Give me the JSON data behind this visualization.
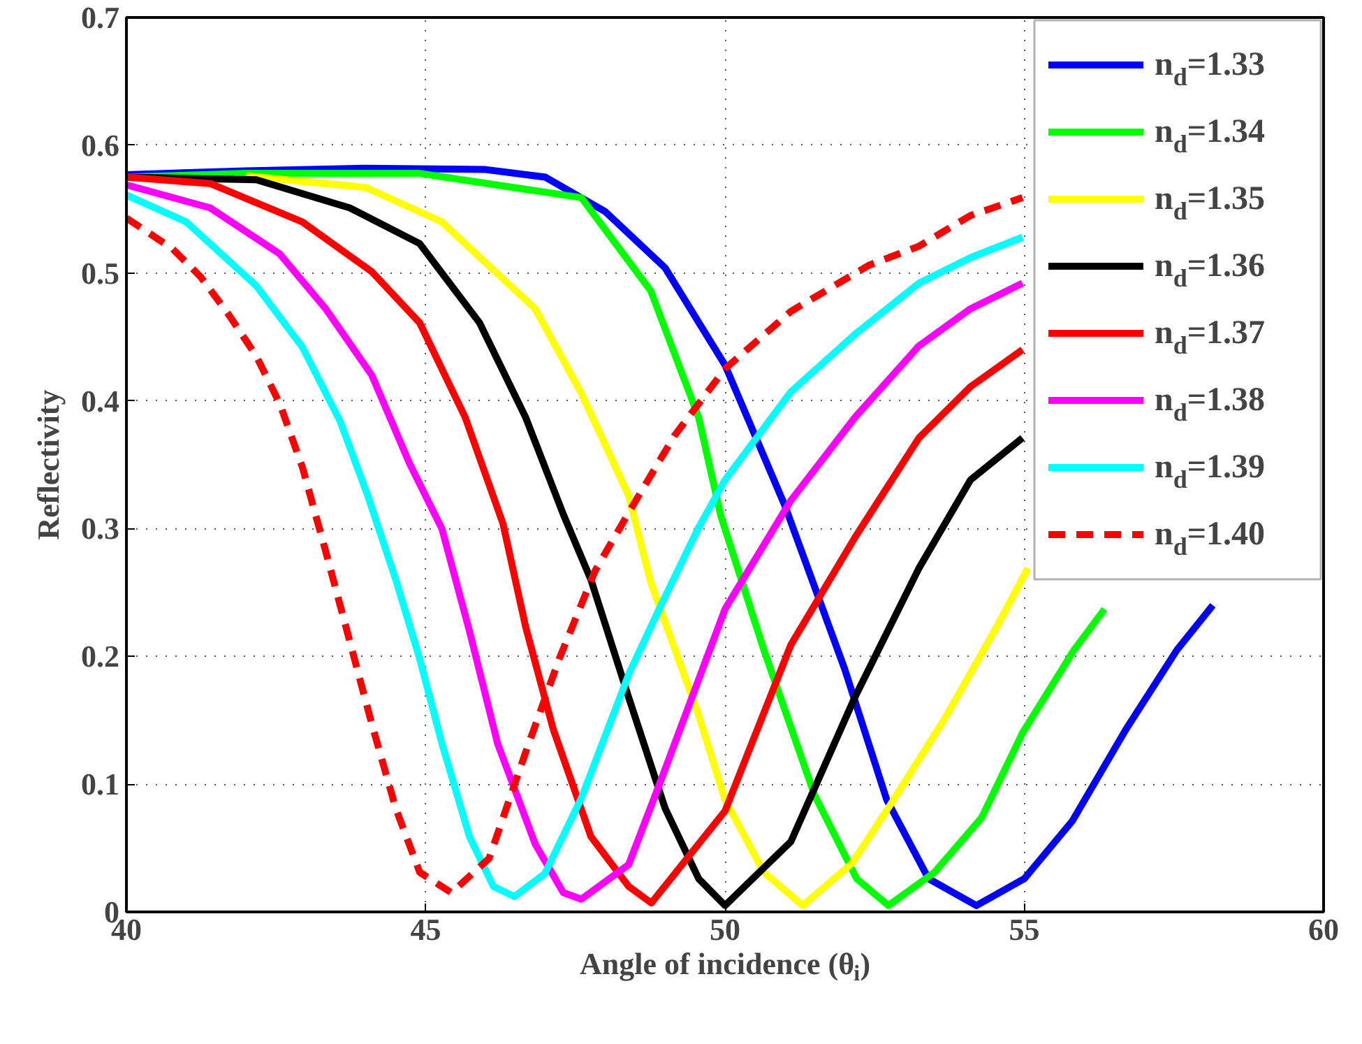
{
  "chart_data": {
    "type": "line",
    "xlabel": "Angle of incidence (θ$_{i}$)",
    "ylabel": "Reflectivity",
    "xlim": [
      40,
      60
    ],
    "ylim": [
      0,
      0.7
    ],
    "xticks": [
      40,
      45,
      50,
      55,
      60
    ],
    "yticks": [
      0,
      0.1,
      0.2,
      0.3,
      0.4,
      0.5,
      0.6,
      0.7
    ],
    "grid": true,
    "legend": "top right",
    "line_style": "solid",
    "series": [
      {
        "name": "n$_{d}$=1.33",
        "color": "#0000ff",
        "x": [
          40,
          42,
          44,
          46,
          47,
          48,
          49,
          50,
          51,
          52,
          52.7,
          53.4,
          54.2,
          55,
          55.8,
          56.7,
          57.55,
          58.15
        ],
        "values": [
          0.577,
          0.58,
          0.582,
          0.581,
          0.575,
          0.548,
          0.504,
          0.428,
          0.318,
          0.19,
          0.088,
          0.026,
          0.005,
          0.026,
          0.071,
          0.143,
          0.205,
          0.24
        ]
      },
      {
        "name": "n$_{d}$=1.34",
        "color": "#00ff00",
        "x": [
          40,
          42,
          44.9,
          47.6,
          48.76,
          49.56,
          49.93,
          50.65,
          51.5,
          52.2,
          52.73,
          53.5,
          54.29,
          54.97,
          55.83,
          56.34
        ],
        "values": [
          0.575,
          0.578,
          0.578,
          0.559,
          0.486,
          0.387,
          0.31,
          0.205,
          0.091,
          0.026,
          0.005,
          0.031,
          0.074,
          0.14,
          0.205,
          0.237
        ]
      },
      {
        "name": "n$_{d}$=1.35",
        "color": "#ffff00",
        "x": [
          42,
          44,
          45.27,
          46.83,
          47.6,
          48.39,
          48.76,
          49.56,
          50,
          50.65,
          51.3,
          52.12,
          52.82,
          53.68,
          54.55,
          55.06
        ],
        "values": [
          0.576,
          0.567,
          0.54,
          0.472,
          0.406,
          0.326,
          0.258,
          0.154,
          0.088,
          0.031,
          0.005,
          0.038,
          0.088,
          0.152,
          0.224,
          0.269
        ]
      },
      {
        "name": "n$_{d}$=1.36",
        "color": "#000000",
        "x": [
          40,
          42.17,
          43.73,
          44.9,
          45.9,
          46.67,
          47.3,
          47.76,
          48.39,
          49,
          49.56,
          50,
          51.1,
          52.17,
          53.24,
          54.1,
          54.97
        ],
        "values": [
          0.575,
          0.573,
          0.551,
          0.523,
          0.461,
          0.387,
          0.311,
          0.26,
          0.168,
          0.081,
          0.026,
          0.005,
          0.055,
          0.168,
          0.269,
          0.338,
          0.371
        ]
      },
      {
        "name": "n$_{d}$=1.37",
        "color": "#ff0000",
        "x": [
          40,
          41.4,
          42.94,
          44.1,
          44.9,
          45.66,
          46.29,
          46.67,
          47.13,
          47.76,
          48.39,
          48.77,
          50,
          51.1,
          52.17,
          53.24,
          54.1,
          54.97
        ],
        "values": [
          0.575,
          0.57,
          0.54,
          0.501,
          0.461,
          0.387,
          0.304,
          0.223,
          0.143,
          0.059,
          0.02,
          0.007,
          0.079,
          0.209,
          0.293,
          0.371,
          0.411,
          0.44
        ]
      },
      {
        "name": "n$_{d}$=1.38",
        "color": "#ff00ff",
        "x": [
          40,
          41.4,
          42.56,
          43.33,
          44.1,
          44.73,
          45.27,
          45.73,
          46.2,
          46.83,
          47.3,
          47.6,
          48.39,
          48.93,
          50,
          51.1,
          52.17,
          53.24,
          54.1,
          54.97
        ],
        "values": [
          0.569,
          0.551,
          0.515,
          0.472,
          0.42,
          0.351,
          0.3,
          0.22,
          0.132,
          0.053,
          0.015,
          0.01,
          0.037,
          0.103,
          0.237,
          0.322,
          0.387,
          0.443,
          0.472,
          0.492
        ]
      },
      {
        "name": "n$_{d}$=1.39",
        "color": "#00ffff",
        "x": [
          40,
          41,
          42.17,
          42.94,
          43.57,
          44.03,
          44.5,
          44.9,
          45.27,
          45.73,
          46.13,
          46.48,
          46.99,
          47.6,
          48.4,
          48.93,
          49.55,
          50,
          51.1,
          52.17,
          53.24,
          54.1,
          54.97
        ],
        "values": [
          0.561,
          0.54,
          0.49,
          0.442,
          0.384,
          0.326,
          0.26,
          0.198,
          0.132,
          0.059,
          0.02,
          0.012,
          0.03,
          0.089,
          0.187,
          0.24,
          0.3,
          0.338,
          0.407,
          0.452,
          0.492,
          0.512,
          0.528
        ]
      },
      {
        "name": "n$_{d}$=1.40",
        "color": "#ff0000",
        "line_style": "dashed",
        "x": [
          40,
          40.77,
          41.24,
          41.7,
          42.17,
          42.56,
          42.94,
          43.33,
          43.73,
          44.1,
          44.5,
          44.9,
          45.43,
          46.06,
          46.67,
          47.23,
          47.83,
          48.46,
          49.16,
          50,
          51.1,
          52.4,
          53.24,
          54.1,
          54.97
        ],
        "values": [
          0.543,
          0.519,
          0.497,
          0.468,
          0.435,
          0.398,
          0.348,
          0.282,
          0.212,
          0.147,
          0.081,
          0.031,
          0.015,
          0.042,
          0.125,
          0.198,
          0.267,
          0.318,
          0.373,
          0.425,
          0.47,
          0.506,
          0.521,
          0.545,
          0.559
        ]
      }
    ]
  }
}
